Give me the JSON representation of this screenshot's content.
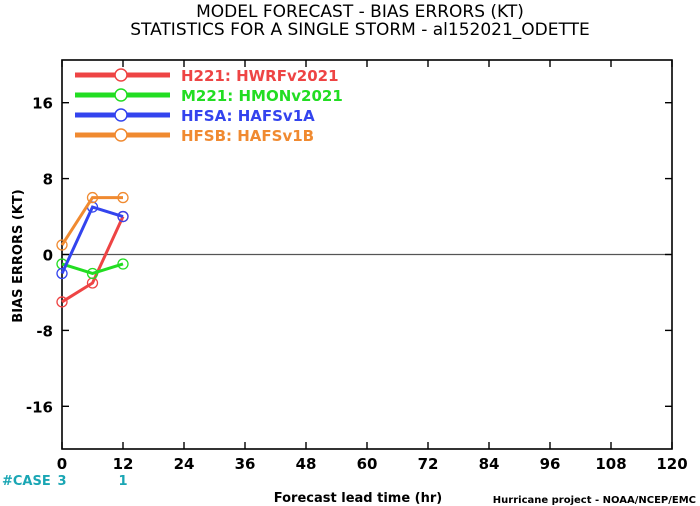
{
  "chart_data": {
    "type": "line",
    "title": "MODEL FORECAST - BIAS ERRORS (KT)",
    "subtitle": "STATISTICS FOR A SINGLE STORM - al152021_ODETTE",
    "xlabel": "Forecast lead time (hr)",
    "ylabel": "BIAS ERRORS (KT)",
    "xlim": [
      0,
      120
    ],
    "ylim": [
      -20.5,
      20.5
    ],
    "xticks": [
      0,
      12,
      24,
      36,
      48,
      60,
      72,
      84,
      96,
      108,
      120
    ],
    "yticks": [
      -16,
      -8,
      0,
      8,
      16
    ],
    "zero_line": true,
    "legend_position": "top-left",
    "series": [
      {
        "name": "H221: HWRFv2021",
        "color": "#ee4444",
        "x": [
          0,
          6,
          12
        ],
        "y": [
          -5,
          -3,
          4
        ]
      },
      {
        "name": "M221: HMONv2021",
        "color": "#22dd22",
        "x": [
          0,
          6,
          12
        ],
        "y": [
          -1,
          -2,
          -1
        ]
      },
      {
        "name": "HFSA: HAFSv1A",
        "color": "#3344ee",
        "x": [
          0,
          6,
          12
        ],
        "y": [
          -2,
          5,
          4
        ]
      },
      {
        "name": "HFSB: HAFSv1B",
        "color": "#f08a30",
        "x": [
          0,
          6,
          12
        ],
        "y": [
          1,
          6,
          6
        ]
      }
    ],
    "cases": {
      "label": "#CASE",
      "x": [
        0,
        12
      ],
      "values": [
        "3",
        "1"
      ]
    }
  },
  "footer": {
    "credit": "Hurricane project - NOAA/NCEP/EMC"
  }
}
